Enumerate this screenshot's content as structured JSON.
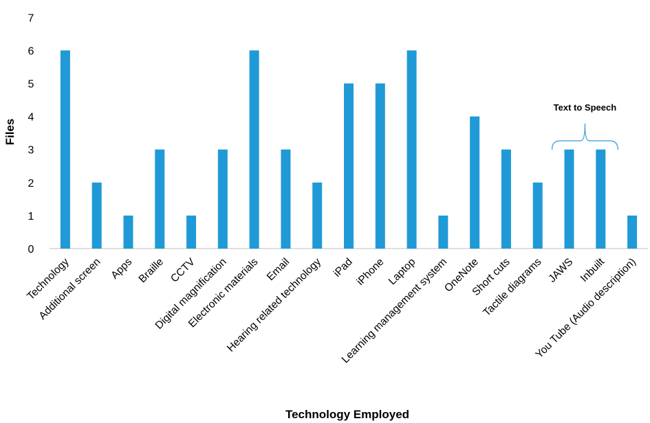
{
  "chart_data": {
    "type": "bar",
    "title": "",
    "xlabel": "Technology Employed",
    "ylabel": "Files",
    "ylim": [
      0,
      7
    ],
    "yticks": [
      0,
      1,
      2,
      3,
      4,
      5,
      6,
      7
    ],
    "grid": false,
    "legend": "none",
    "bar_color": "#1f9ad6",
    "categories": [
      "Technology",
      "Additional screen",
      "Apps",
      "Braille",
      "CCTV",
      "Digital magnification",
      "Electronic materials",
      "Email",
      "Hearing related technology",
      "iPad",
      "iPhone",
      "Laptop",
      "Learning management system",
      "OneNote",
      "Short cuts",
      "Tactile diagrams",
      "JAWS",
      "Inbuilt",
      "You Tube (Audio description)"
    ],
    "values": [
      6,
      2,
      1,
      3,
      1,
      3,
      6,
      3,
      2,
      5,
      5,
      6,
      1,
      4,
      3,
      2,
      3,
      3,
      1
    ],
    "annotation": {
      "text": "Text to Speech",
      "groups": [
        "JAWS",
        "Inbuilt"
      ],
      "brace_color": "#5aa8e0"
    }
  }
}
